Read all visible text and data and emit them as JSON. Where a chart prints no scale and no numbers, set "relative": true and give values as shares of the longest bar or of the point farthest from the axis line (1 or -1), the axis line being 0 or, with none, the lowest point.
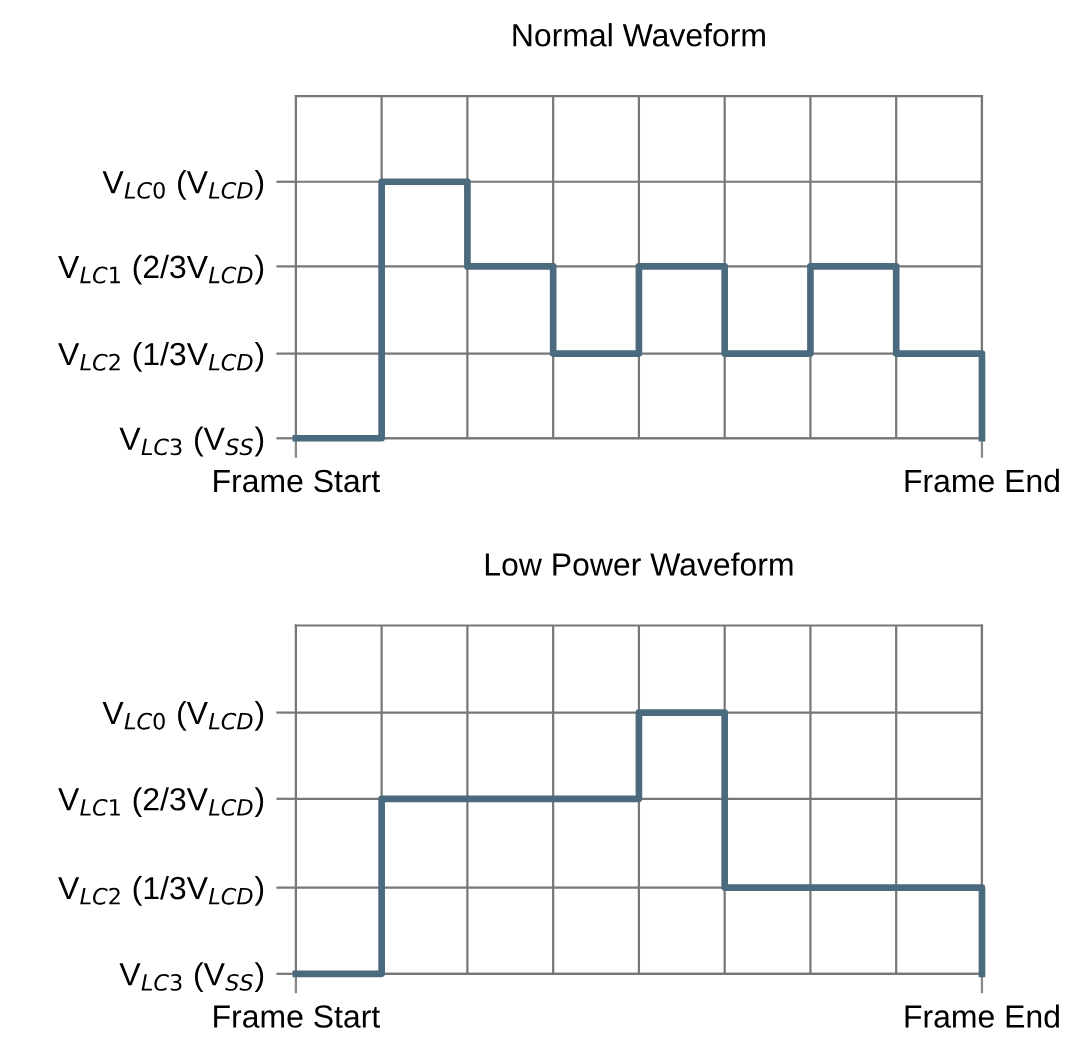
{
  "chart_data": [
    {
      "type": "step",
      "title": "Normal Waveform",
      "relative": true,
      "categories": [
        "Frame Start",
        null,
        null,
        null,
        null,
        null,
        null,
        null,
        "Frame End"
      ],
      "series": [
        {
          "color": "#4a6a7d",
          "values": [
            0,
            1,
            0.67,
            0.33,
            0.67,
            0.33,
            0.67,
            0.33,
            0
          ]
        }
      ],
      "ref_lines": [
        {
          "axis": "y",
          "value": 1,
          "label": "V$_{LC0}$ (V$_{LCD}$)",
          "color": "#777777",
          "line_style": "solid"
        },
        {
          "axis": "y",
          "value": 0.67,
          "label": "V$_{LC1}$ (2/3V$_{LCD}$)",
          "color": "#777777",
          "line_style": "solid"
        },
        {
          "axis": "y",
          "value": 0.33,
          "label": "V$_{LC2}$ (1/3V$_{LCD}$)",
          "color": "#777777",
          "line_style": "solid"
        },
        {
          "axis": "y",
          "value": 0,
          "label": "V$_{LC3}$ (V$_{SS}$)",
          "color": "#777777",
          "line_style": "solid"
        }
      ],
      "grid": "x",
      "line_style": "solid"
    },
    {
      "type": "step",
      "title": "Low Power Waveform",
      "relative": true,
      "categories": [
        "Frame Start",
        null,
        null,
        null,
        null,
        null,
        null,
        null,
        "Frame End"
      ],
      "series": [
        {
          "color": "#4a6a7d",
          "values": [
            0,
            0.67,
            0.67,
            0.67,
            1,
            0.33,
            0.33,
            0.33,
            0
          ]
        }
      ],
      "ref_lines": [
        {
          "axis": "y",
          "value": 1,
          "label": "V$_{LC0}$ (V$_{LCD}$)",
          "color": "#777777",
          "line_style": "solid"
        },
        {
          "axis": "y",
          "value": 0.67,
          "label": "V$_{LC1}$ (2/3V$_{LCD}$)",
          "color": "#777777",
          "line_style": "solid"
        },
        {
          "axis": "y",
          "value": 0.33,
          "label": "V$_{LC2}$ (1/3V$_{LCD}$)",
          "color": "#777777",
          "line_style": "solid"
        },
        {
          "axis": "y",
          "value": 0,
          "label": "V$_{LC3}$ (V$_{SS}$)",
          "color": "#777777",
          "line_style": "solid"
        }
      ],
      "grid": "x",
      "line_style": "solid"
    }
  ]
}
